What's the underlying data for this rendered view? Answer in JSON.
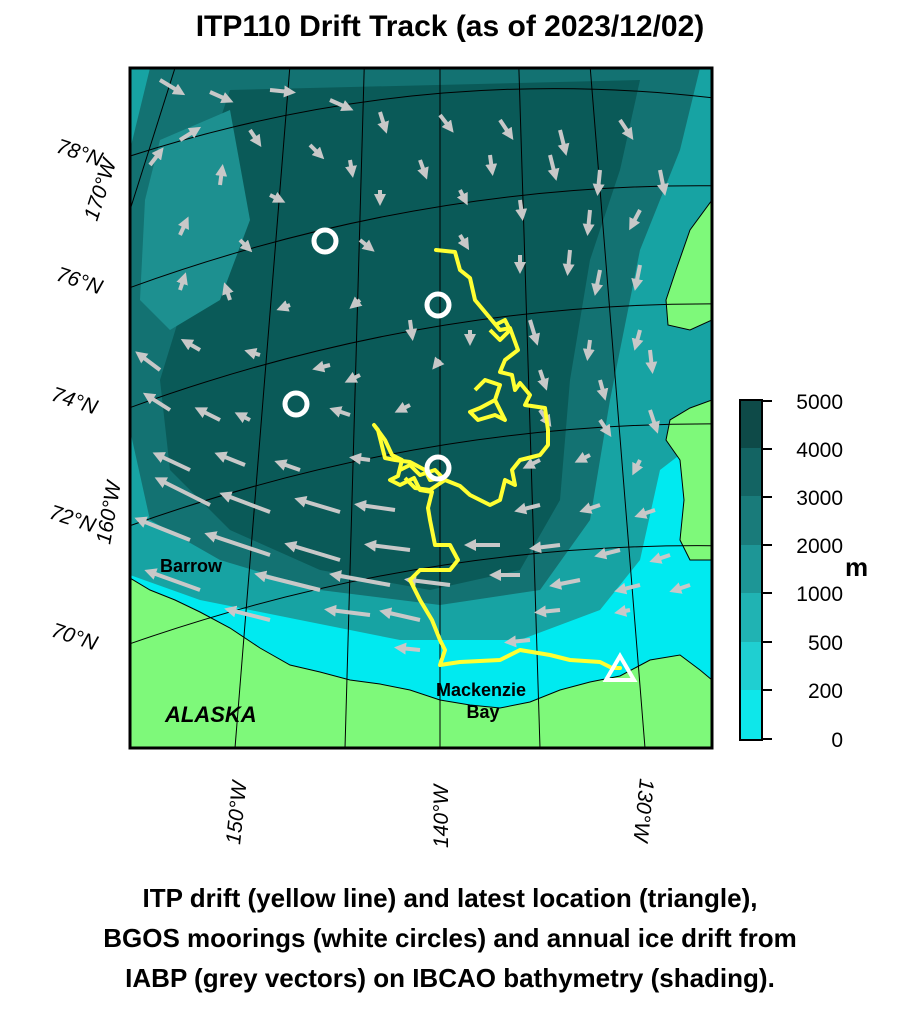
{
  "title": "ITP110 Drift Track (as of 2023/12/02)",
  "map": {
    "lat_labels": [
      "78°N",
      "76°N",
      "74°N",
      "72°N",
      "70°N"
    ],
    "lon_labels_left": [
      "170°W",
      "160°W"
    ],
    "lon_labels_bottom": [
      "150°W",
      "140°W",
      "130°W"
    ],
    "place_labels": {
      "barrow": "Barrow",
      "alaska": "ALASKA",
      "mackenzie_line1": "Mackenzie",
      "mackenzie_line2": "Bay"
    },
    "colors": {
      "land": "#7ef97a",
      "shallow": "#00eaf0",
      "deep": "#0a5a58",
      "track": "#ffff33",
      "vectors": "#c8c8c8",
      "moorings": "#ffffff"
    },
    "markers": {
      "moorings_icon": "circle-icon",
      "latest_location_icon": "triangle-icon"
    }
  },
  "colorbar": {
    "unit": "m",
    "ticks": [
      "5000",
      "4000",
      "3000",
      "2000",
      "1000",
      "500",
      "200",
      "0"
    ],
    "colors": [
      "#0e4a48",
      "#136463",
      "#197b7a",
      "#1d9696",
      "#20b3b3",
      "#1fcfd1",
      "#0ee7ea"
    ]
  },
  "caption": {
    "line1": "ITP drift (yellow line) and latest location (triangle),",
    "line2": "BGOS moorings (white circles) and annual ice drift from",
    "line3": "IABP (grey vectors) on IBCAO bathymetry (shading)."
  }
}
